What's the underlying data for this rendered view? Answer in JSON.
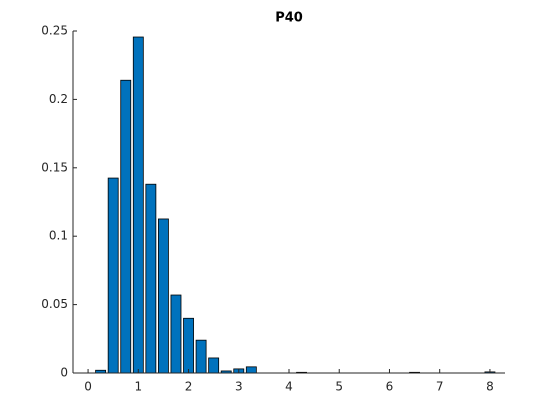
{
  "chart_data": {
    "type": "bar",
    "title": "P40",
    "x": [
      0.25,
      0.5,
      0.75,
      1.0,
      1.25,
      1.5,
      1.75,
      2.0,
      2.25,
      2.5,
      2.75,
      3.0,
      3.25,
      4.25,
      6.5,
      8.0
    ],
    "values": [
      0.002,
      0.1425,
      0.214,
      0.2456,
      0.138,
      0.1126,
      0.057,
      0.04,
      0.024,
      0.011,
      0.0015,
      0.003,
      0.0045,
      0.0005,
      0.0005,
      0.0008
    ],
    "color": "#0072bd",
    "xlim": [
      -0.3,
      8.3
    ],
    "xticks": [
      0,
      1,
      2,
      3,
      4,
      5,
      6,
      7,
      8
    ],
    "ylim": [
      0,
      0.25
    ],
    "yticks": [
      0,
      0.05,
      0.1,
      0.15,
      0.2,
      0.25
    ]
  }
}
